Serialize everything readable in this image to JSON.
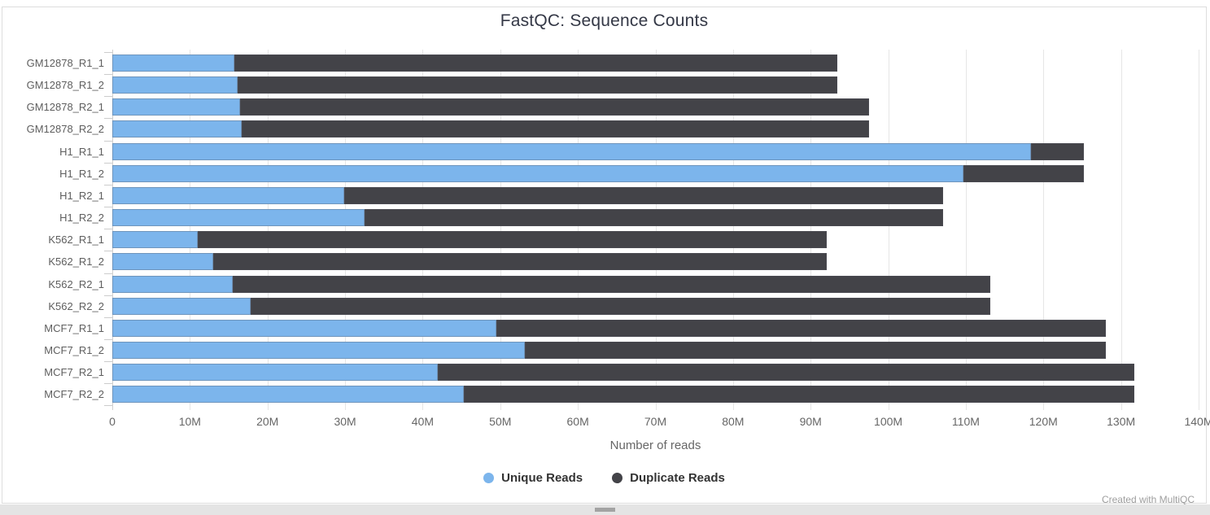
{
  "title": "FastQC: Sequence Counts",
  "footer": "Created with MultiQC",
  "xaxis": {
    "label": "Number of reads",
    "ticks": [
      "0",
      "10M",
      "20M",
      "30M",
      "40M",
      "50M",
      "60M",
      "70M",
      "80M",
      "90M",
      "100M",
      "110M",
      "120M",
      "130M",
      "140M"
    ]
  },
  "legend": {
    "items": [
      {
        "label": "Unique Reads",
        "color": "#7cb5ec"
      },
      {
        "label": "Duplicate Reads",
        "color": "#434348"
      }
    ]
  },
  "chart_data": {
    "type": "bar",
    "orientation": "horizontal",
    "stacked": true,
    "title": "FastQC: Sequence Counts",
    "xlabel": "Number of reads",
    "ylabel": "",
    "xlim_millions": [
      0,
      140
    ],
    "grid": true,
    "legend_position": "bottom",
    "categories": [
      "GM12878_R1_1",
      "GM12878_R1_2",
      "GM12878_R2_1",
      "GM12878_R2_2",
      "H1_R1_1",
      "H1_R1_2",
      "H1_R2_1",
      "H1_R2_2",
      "K562_R1_1",
      "K562_R1_2",
      "K562_R2_1",
      "K562_R2_2",
      "MCF7_R1_1",
      "MCF7_R1_2",
      "MCF7_R2_1",
      "MCF7_R2_2"
    ],
    "series": [
      {
        "name": "Unique Reads",
        "color": "#7cb5ec",
        "values_millions": [
          15.7,
          16.2,
          16.5,
          16.7,
          118.4,
          109.7,
          29.9,
          32.5,
          11.0,
          13.0,
          15.5,
          17.8,
          49.5,
          53.2,
          41.9,
          45.3
        ]
      },
      {
        "name": "Duplicate Reads",
        "color": "#434348",
        "values_millions": [
          77.7,
          77.2,
          81.0,
          80.8,
          6.8,
          15.5,
          77.2,
          74.6,
          81.1,
          79.1,
          97.7,
          95.4,
          78.5,
          74.8,
          89.8,
          86.4
        ]
      }
    ],
    "totals_millions": [
      93.4,
      93.4,
      97.5,
      97.5,
      125.2,
      125.2,
      107.1,
      107.1,
      92.1,
      92.1,
      113.2,
      113.2,
      128.0,
      128.0,
      131.7,
      131.7
    ]
  }
}
